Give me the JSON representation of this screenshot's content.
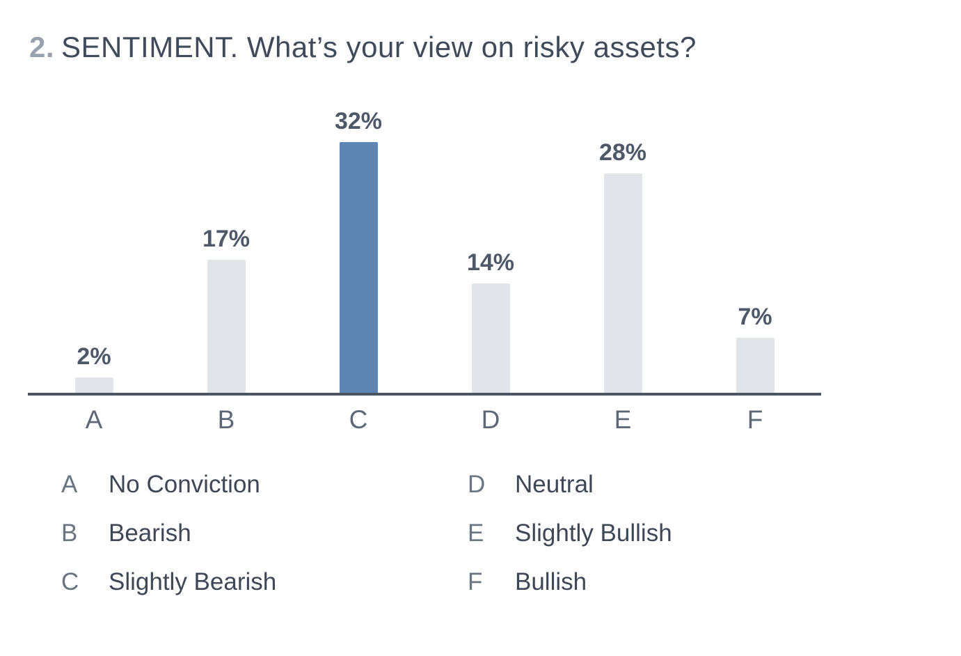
{
  "title": {
    "number": "2.",
    "text": "SENTIMENT. What’s your view on risky assets?"
  },
  "chart_data": {
    "type": "bar",
    "title": "2. SENTIMENT. What’s your view on risky assets?",
    "categories": [
      "A",
      "B",
      "C",
      "D",
      "E",
      "F"
    ],
    "values": [
      2,
      17,
      32,
      14,
      28,
      7
    ],
    "value_labels": [
      "2%",
      "17%",
      "32%",
      "14%",
      "28%",
      "7%"
    ],
    "highlight_index": 2,
    "bar_color": "#e1e4e8",
    "highlight_color": "#5e86b4",
    "xlabel": "",
    "ylabel": "",
    "ylim": [
      0,
      32
    ],
    "grid": false,
    "legend_position": "below"
  },
  "legend": {
    "items": [
      {
        "key": "A",
        "label": "No Conviction"
      },
      {
        "key": "B",
        "label": "Bearish"
      },
      {
        "key": "C",
        "label": "Slightly Bearish"
      },
      {
        "key": "D",
        "label": "Neutral"
      },
      {
        "key": "E",
        "label": "Slightly Bullish"
      },
      {
        "key": "F",
        "label": "Bullish"
      }
    ]
  }
}
